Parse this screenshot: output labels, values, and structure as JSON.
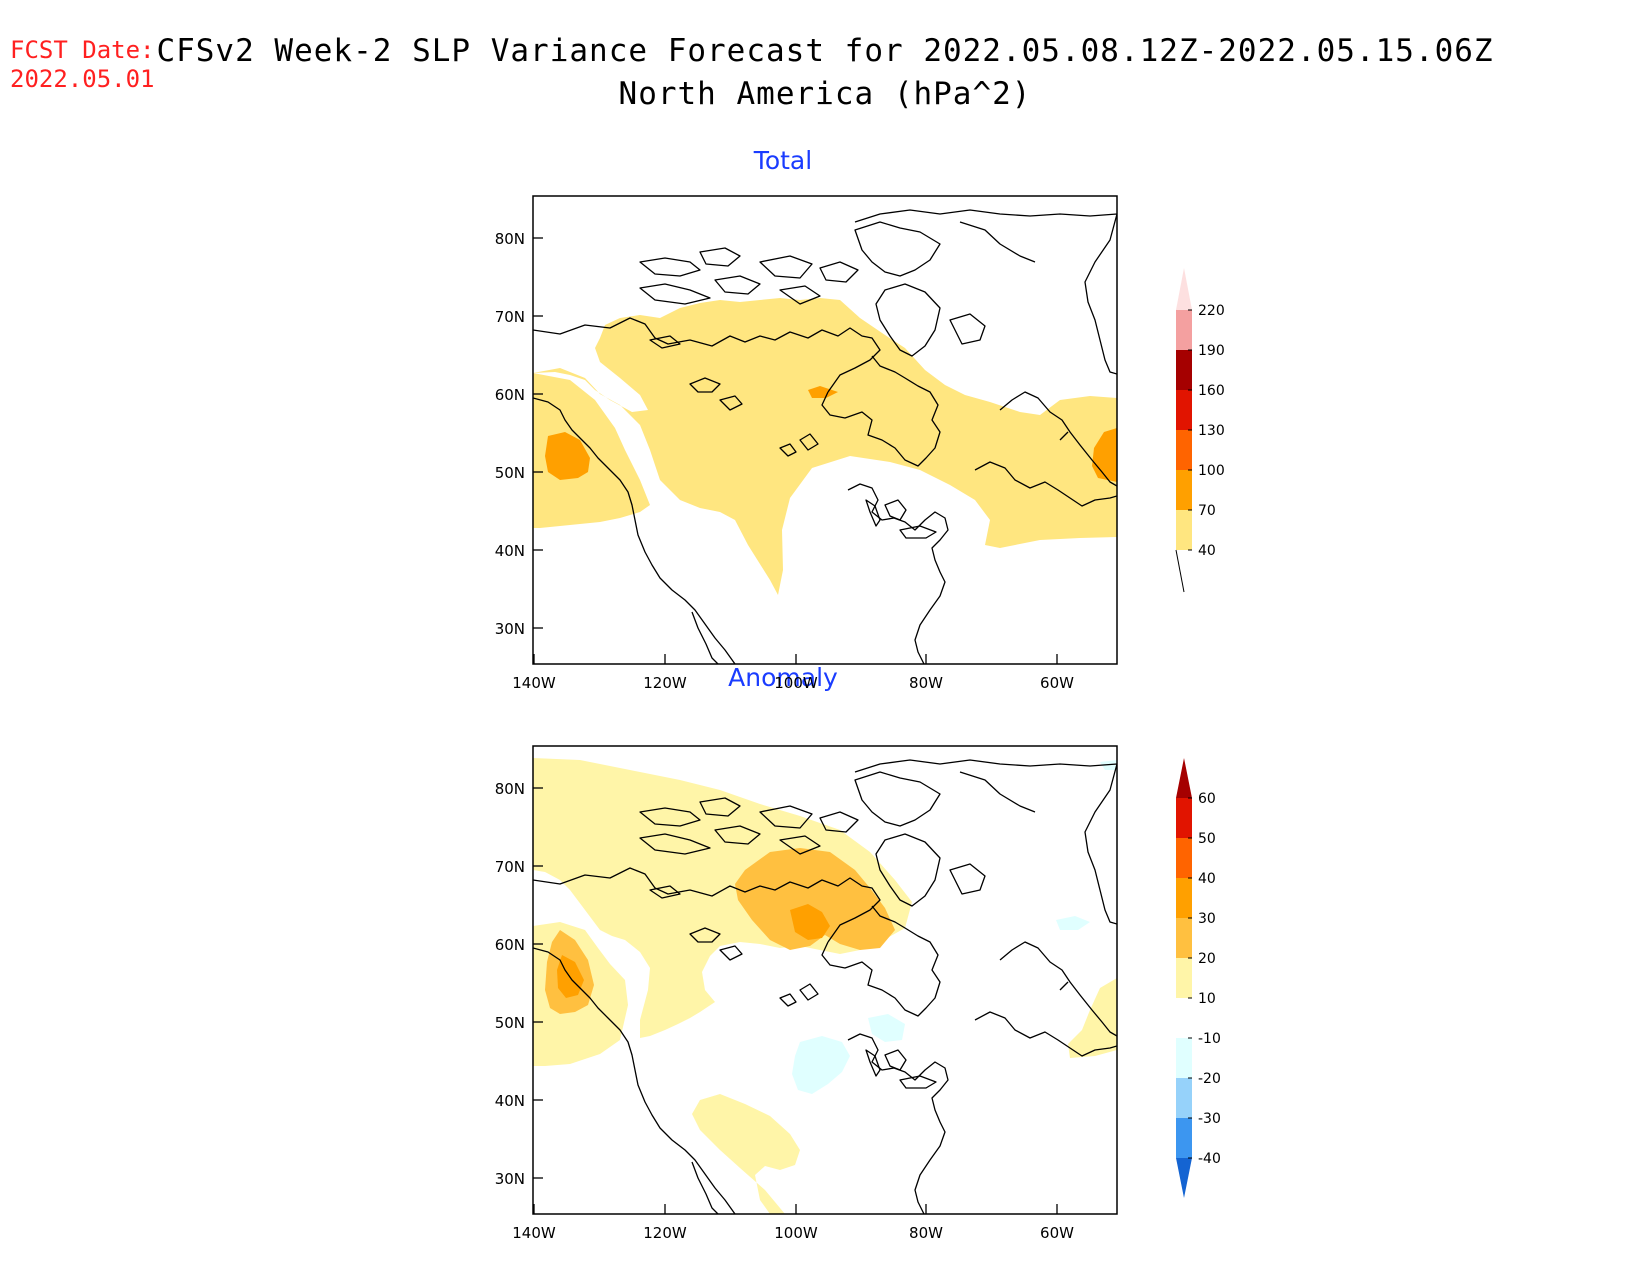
{
  "header": {
    "fcst_line1": "FCST Date:",
    "fcst_line2": "2022.05.01",
    "title_line1": "CFSv2 Week-2 SLP Variance Forecast for 2022.05.08.12Z-2022.05.15.06Z",
    "title_line2": "North America (hPa^2)"
  },
  "panels": [
    {
      "title": "Total",
      "lat_ticks": [
        "80N",
        "70N",
        "60N",
        "50N",
        "40N",
        "30N"
      ],
      "lon_ticks": [
        "140W",
        "120W",
        "100W",
        "80W",
        "60W"
      ],
      "colorbar": {
        "labels": [
          "40",
          "70",
          "100",
          "130",
          "160",
          "190",
          "220"
        ],
        "colors": [
          "#ffe680",
          "#ffa000",
          "#ff6400",
          "#e11400",
          "#a50000",
          "#f4a0a0",
          "#fde0e0"
        ]
      }
    },
    {
      "title": "Anomaly",
      "lat_ticks": [
        "80N",
        "70N",
        "60N",
        "50N",
        "40N",
        "30N"
      ],
      "lon_ticks": [
        "140W",
        "120W",
        "100W",
        "80W",
        "60W"
      ],
      "colorbar": {
        "labels": [
          "60",
          "50",
          "40",
          "30",
          "20",
          "10",
          "-10",
          "-20",
          "-30",
          "-40"
        ],
        "colors": [
          "#a50000",
          "#e11400",
          "#ff6400",
          "#ffa000",
          "#ffc040",
          "#fff5a8",
          "#ffffff",
          "#e0ffff",
          "#96d2fa",
          "#3c96f0",
          "#1464d2"
        ]
      }
    }
  ]
}
